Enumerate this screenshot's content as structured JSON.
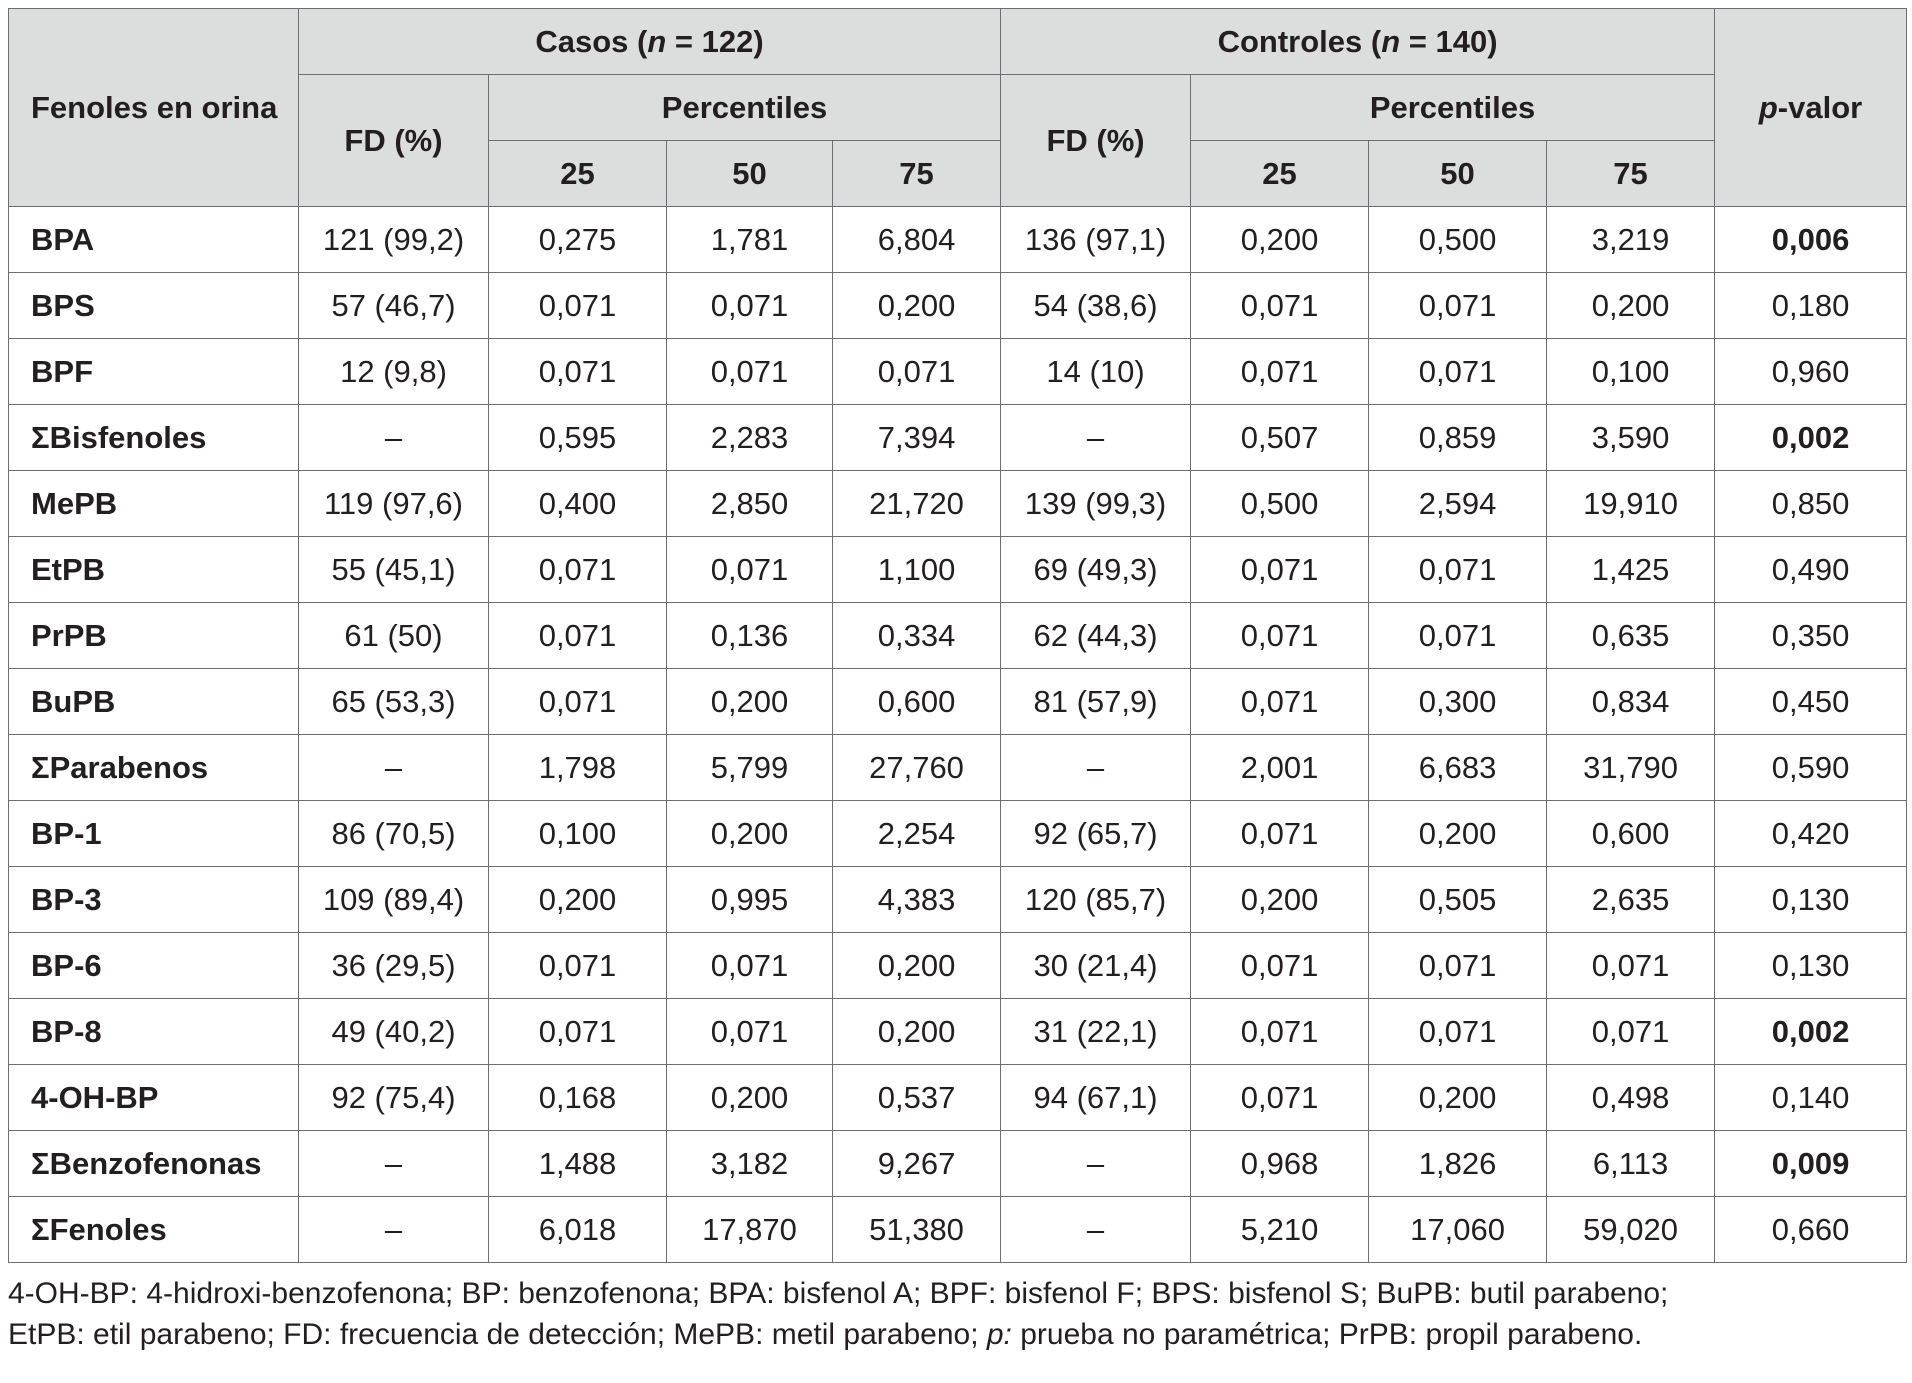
{
  "table": {
    "header": {
      "corner": "Fenoles en orina",
      "casos_label": "Casos (",
      "casos_n": "n",
      "casos_count": " = 122)",
      "controles_label": "Controles (",
      "controles_n": "n",
      "controles_count": " = 140)",
      "fd_label": "FD (%)",
      "percentiles_label": "Percentiles",
      "p_letter": "p",
      "p_rest": "-valor",
      "percentiles": [
        "25",
        "50",
        "75"
      ]
    },
    "rows": [
      {
        "name": "BPA",
        "casos": [
          "121 (99,2)",
          "0,275",
          "1,781",
          "6,804"
        ],
        "controles": [
          "136 (97,1)",
          "0,200",
          "0,500",
          "3,219"
        ],
        "p": "0,006",
        "p_bold": true
      },
      {
        "name": "BPS",
        "casos": [
          "57 (46,7)",
          "0,071",
          "0,071",
          "0,200"
        ],
        "controles": [
          "54 (38,6)",
          "0,071",
          "0,071",
          "0,200"
        ],
        "p": "0,180",
        "p_bold": false
      },
      {
        "name": "BPF",
        "casos": [
          "12 (9,8)",
          "0,071",
          "0,071",
          "0,071"
        ],
        "controles": [
          "14 (10)",
          "0,071",
          "0,071",
          "0,100"
        ],
        "p": "0,960",
        "p_bold": false
      },
      {
        "name": "ΣBisfenoles",
        "casos": [
          "–",
          "0,595",
          "2,283",
          "7,394"
        ],
        "controles": [
          "–",
          "0,507",
          "0,859",
          "3,590"
        ],
        "p": "0,002",
        "p_bold": true
      },
      {
        "name": "MePB",
        "casos": [
          "119 (97,6)",
          "0,400",
          "2,850",
          "21,720"
        ],
        "controles": [
          "139 (99,3)",
          "0,500",
          "2,594",
          "19,910"
        ],
        "p": "0,850",
        "p_bold": false
      },
      {
        "name": "EtPB",
        "casos": [
          "55 (45,1)",
          "0,071",
          "0,071",
          "1,100"
        ],
        "controles": [
          "69 (49,3)",
          "0,071",
          "0,071",
          "1,425"
        ],
        "p": "0,490",
        "p_bold": false
      },
      {
        "name": "PrPB",
        "casos": [
          "61 (50)",
          "0,071",
          "0,136",
          "0,334"
        ],
        "controles": [
          "62 (44,3)",
          "0,071",
          "0,071",
          "0,635"
        ],
        "p": "0,350",
        "p_bold": false
      },
      {
        "name": "BuPB",
        "casos": [
          "65 (53,3)",
          "0,071",
          "0,200",
          "0,600"
        ],
        "controles": [
          "81 (57,9)",
          "0,071",
          "0,300",
          "0,834"
        ],
        "p": "0,450",
        "p_bold": false
      },
      {
        "name": "ΣParabenos",
        "casos": [
          "–",
          "1,798",
          "5,799",
          "27,760"
        ],
        "controles": [
          "–",
          "2,001",
          "6,683",
          "31,790"
        ],
        "p": "0,590",
        "p_bold": false
      },
      {
        "name": "BP-1",
        "casos": [
          "86 (70,5)",
          "0,100",
          "0,200",
          "2,254"
        ],
        "controles": [
          "92 (65,7)",
          "0,071",
          "0,200",
          "0,600"
        ],
        "p": "0,420",
        "p_bold": false
      },
      {
        "name": "BP-3",
        "casos": [
          "109 (89,4)",
          "0,200",
          "0,995",
          "4,383"
        ],
        "controles": [
          "120 (85,7)",
          "0,200",
          "0,505",
          "2,635"
        ],
        "p": "0,130",
        "p_bold": false
      },
      {
        "name": "BP-6",
        "casos": [
          "36 (29,5)",
          "0,071",
          "0,071",
          "0,200"
        ],
        "controles": [
          "30 (21,4)",
          "0,071",
          "0,071",
          "0,071"
        ],
        "p": "0,130",
        "p_bold": false
      },
      {
        "name": "BP-8",
        "casos": [
          "49 (40,2)",
          "0,071",
          "0,071",
          "0,200"
        ],
        "controles": [
          "31 (22,1)",
          "0,071",
          "0,071",
          "0,071"
        ],
        "p": "0,002",
        "p_bold": true
      },
      {
        "name": "4-OH-BP",
        "casos": [
          "92 (75,4)",
          "0,168",
          "0,200",
          "0,537"
        ],
        "controles": [
          "94 (67,1)",
          "0,071",
          "0,200",
          "0,498"
        ],
        "p": "0,140",
        "p_bold": false
      },
      {
        "name": "ΣBenzofenonas",
        "casos": [
          "–",
          "1,488",
          "3,182",
          "9,267"
        ],
        "controles": [
          "–",
          "0,968",
          "1,826",
          "6,113"
        ],
        "p": "0,009",
        "p_bold": true
      },
      {
        "name": "ΣFenoles",
        "casos": [
          "–",
          "6,018",
          "17,870",
          "51,380"
        ],
        "controles": [
          "–",
          "5,210",
          "17,060",
          "59,020"
        ],
        "p": "0,660",
        "p_bold": false
      }
    ]
  },
  "footnote": {
    "line1": "4-OH-BP: 4-hidroxi-benzofenona; BP: benzofenona; BPA: bisfenol A; BPF: bisfenol F; BPS: bisfenol S; BuPB: butil parabeno;",
    "line2_a": "EtPB: etil parabeno; FD: frecuencia de detección; MePB: metil parabeno; ",
    "line2_p": "p:",
    "line2_b": " prueba no paramétrica; PrPB: propil parabeno."
  },
  "colors": {
    "header_bg": "#dcdddd",
    "border": "#6d6e71",
    "text": "#231f20"
  }
}
